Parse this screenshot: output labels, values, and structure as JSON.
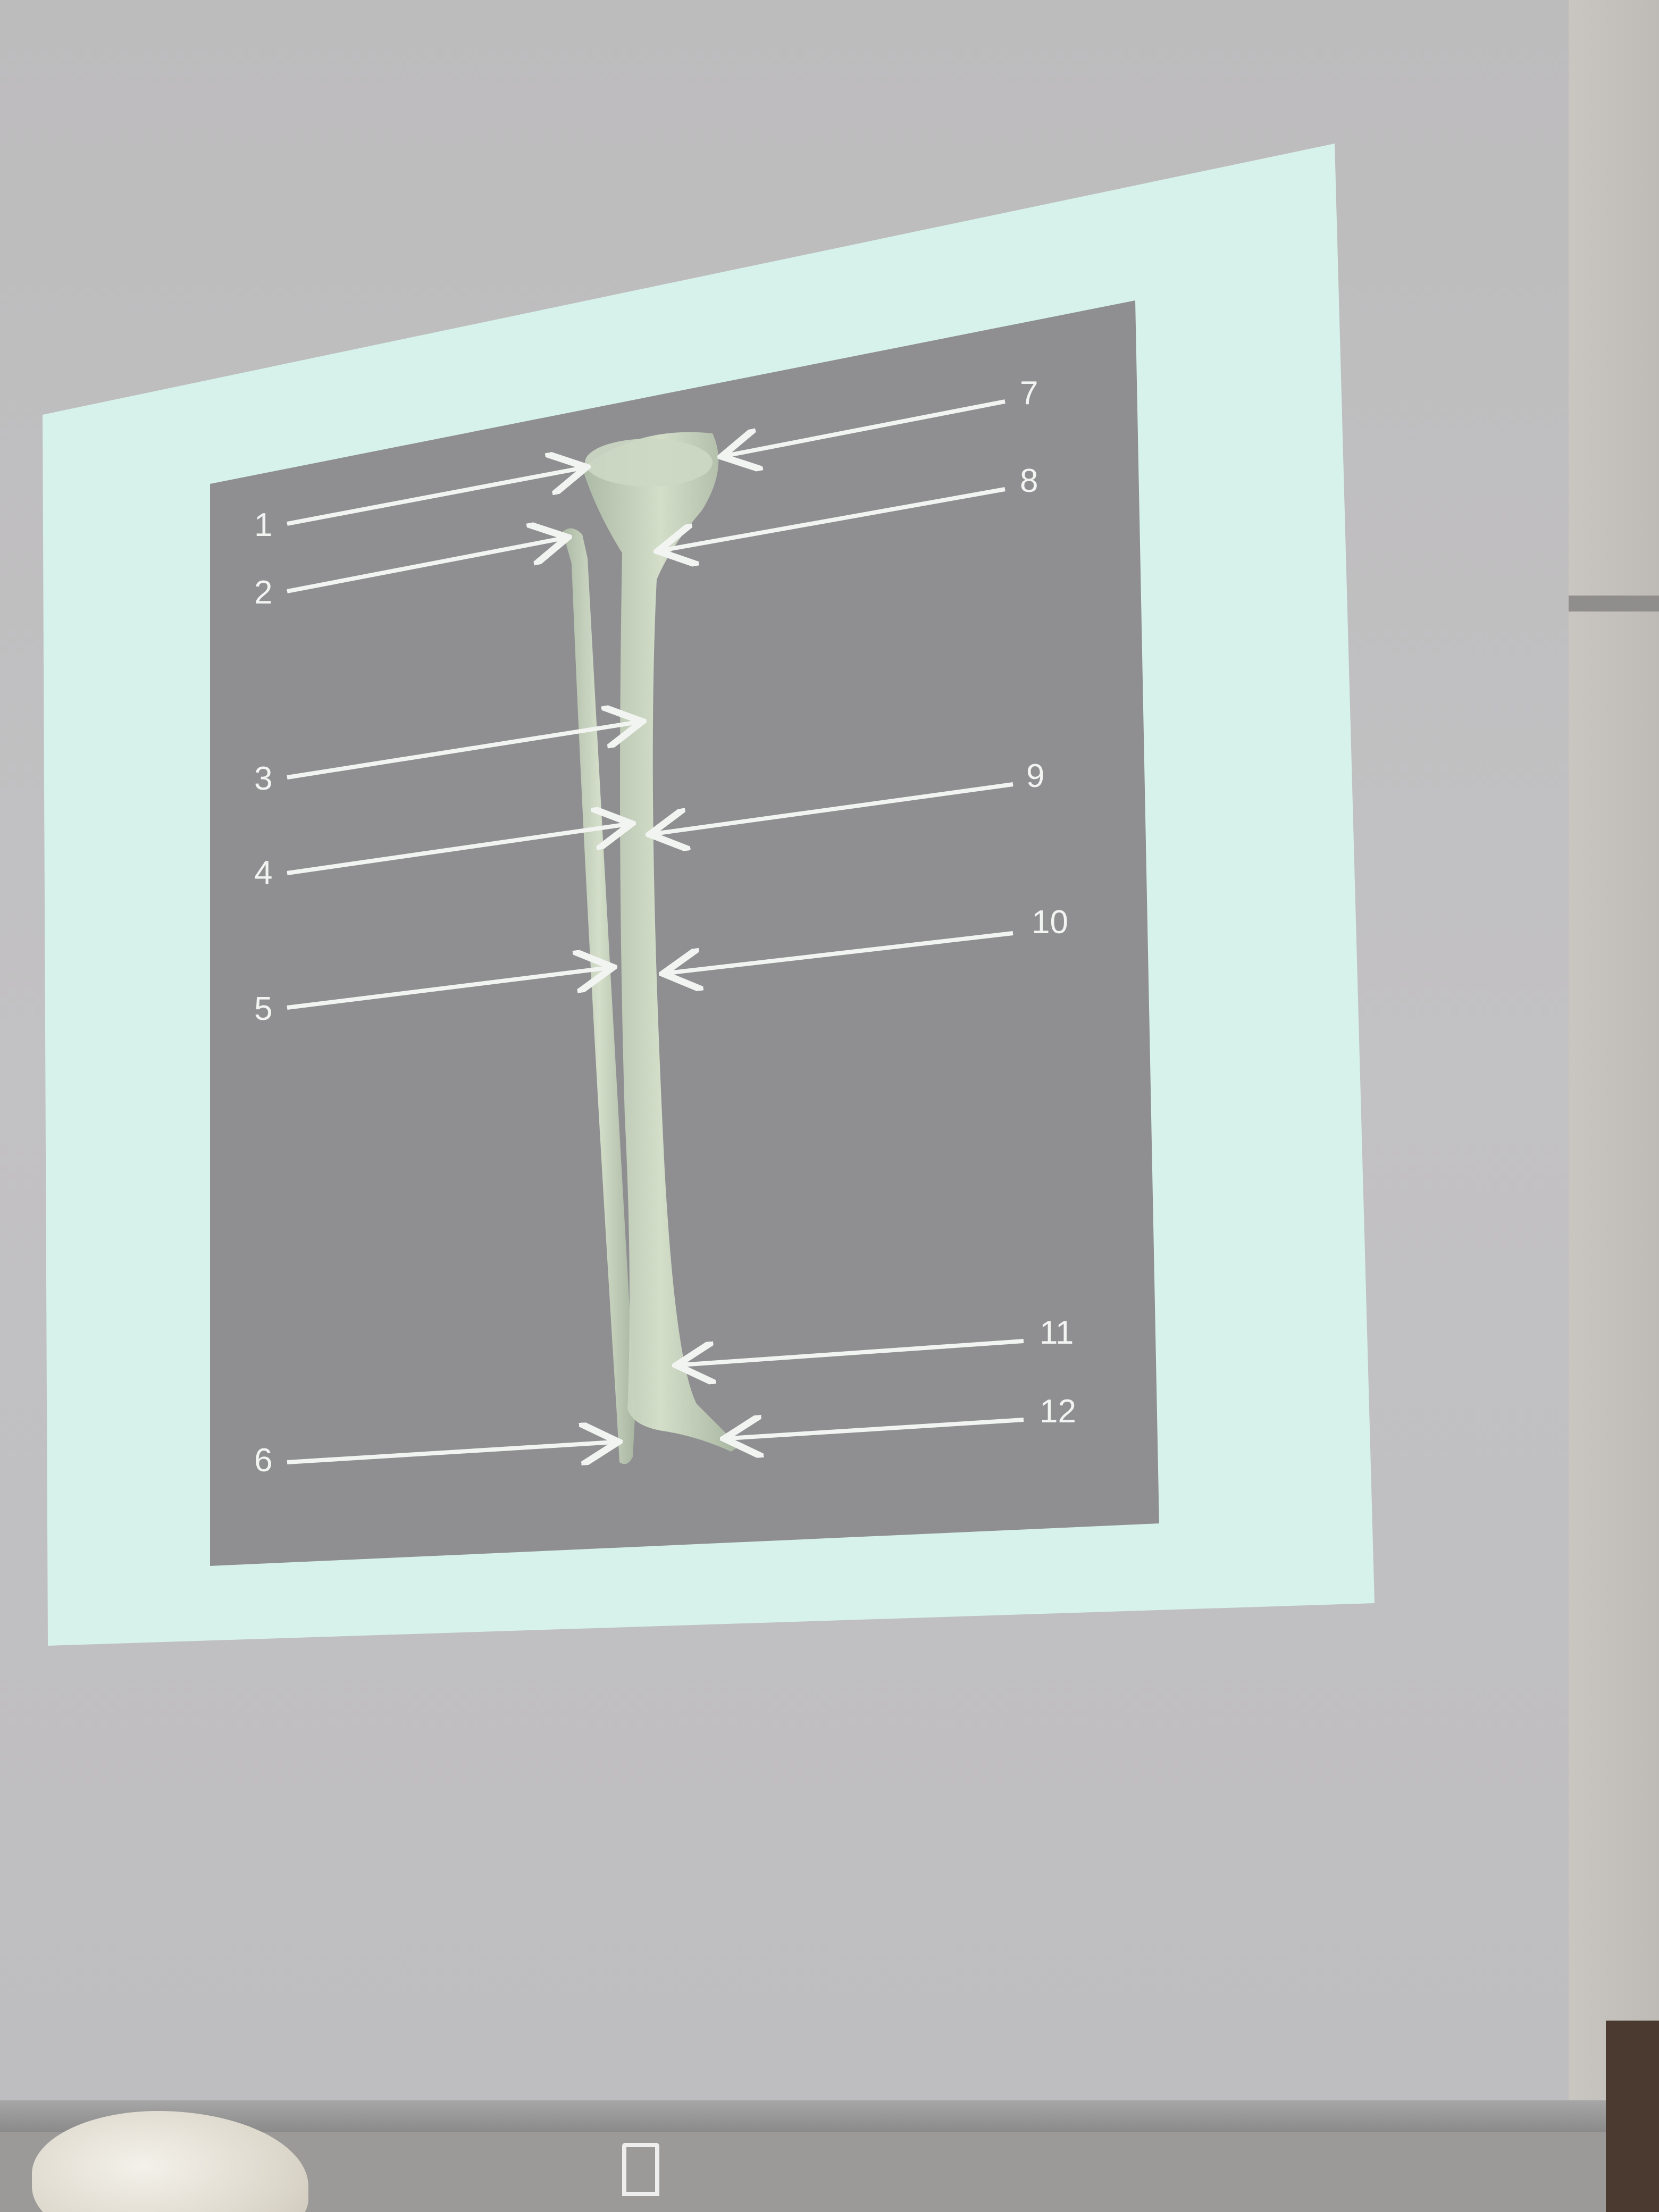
{
  "slide": {
    "frame_color": "#d7f2ea",
    "panel_color": "#8f8f92",
    "bone_color": "#c9d6bf",
    "label_color": "#f2f4f2"
  },
  "labels": {
    "l1": "1",
    "l2": "2",
    "l3": "3",
    "l4": "4",
    "l5": "5",
    "l6": "6",
    "l7": "7",
    "l8": "8",
    "l9": "9",
    "l10": "10",
    "l11": "11",
    "l12": "12"
  }
}
